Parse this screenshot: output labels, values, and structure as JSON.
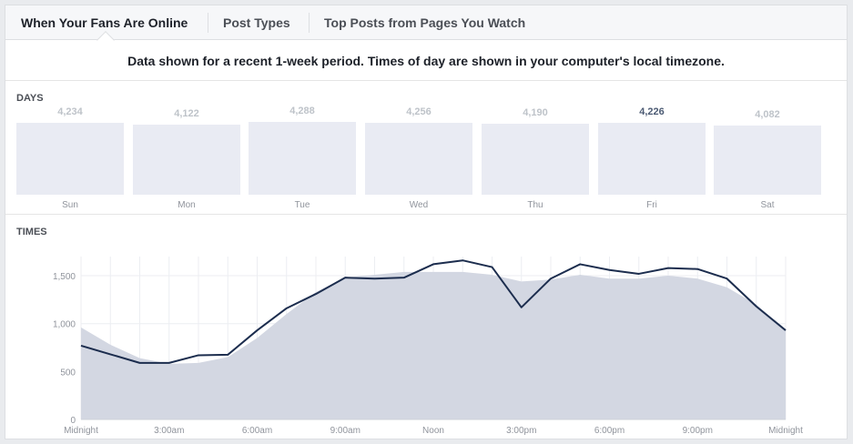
{
  "tabs": [
    {
      "label": "When Your Fans Are Online",
      "active": true
    },
    {
      "label": "Post Types",
      "active": false
    },
    {
      "label": "Top Posts from Pages You Watch",
      "active": false
    }
  ],
  "notice": "Data shown for a recent 1-week period. Times of day are shown in your computer's local timezone.",
  "days_section": {
    "label": "DAYS",
    "days": [
      {
        "name": "Sun",
        "value_label": "4,234",
        "value": 4234,
        "highlighted": false
      },
      {
        "name": "Mon",
        "value_label": "4,122",
        "value": 4122,
        "highlighted": false
      },
      {
        "name": "Tue",
        "value_label": "4,288",
        "value": 4288,
        "highlighted": false
      },
      {
        "name": "Wed",
        "value_label": "4,256",
        "value": 4256,
        "highlighted": false
      },
      {
        "name": "Thu",
        "value_label": "4,190",
        "value": 4190,
        "highlighted": false
      },
      {
        "name": "Fri",
        "value_label": "4,226",
        "value": 4226,
        "highlighted": true
      },
      {
        "name": "Sat",
        "value_label": "4,082",
        "value": 4082,
        "highlighted": false
      }
    ]
  },
  "times_section": {
    "label": "TIMES"
  },
  "colors": {
    "accent_line": "#1c2d4e",
    "area_fill": "#d3d7e2",
    "bar_fill": "#e9ebf3",
    "highlight_text": "#4b5a73"
  },
  "chart_data": {
    "type": "area",
    "x": [
      0,
      1,
      2,
      3,
      4,
      5,
      6,
      7,
      8,
      9,
      10,
      11,
      12,
      13,
      14,
      15,
      16,
      17,
      18,
      19,
      20,
      21,
      22,
      23,
      24
    ],
    "xtick_positions": [
      0,
      3,
      6,
      9,
      12,
      15,
      18,
      21,
      24
    ],
    "xtick_labels": [
      "Midnight",
      "3:00am",
      "6:00am",
      "9:00am",
      "Noon",
      "3:00pm",
      "6:00pm",
      "9:00pm",
      "Midnight"
    ],
    "ytick_values": [
      0,
      500,
      1000,
      1500
    ],
    "ytick_labels": [
      "0",
      "500",
      "1,000",
      "1,500"
    ],
    "ylim": [
      0,
      1700
    ],
    "series": [
      {
        "style": "area",
        "values": [
          960,
          780,
          640,
          580,
          590,
          650,
          850,
          1100,
          1330,
          1480,
          1510,
          1540,
          1540,
          1540,
          1510,
          1440,
          1460,
          1510,
          1470,
          1470,
          1500,
          1470,
          1380,
          1200,
          930
        ]
      },
      {
        "style": "line",
        "values": [
          770,
          680,
          590,
          590,
          670,
          675,
          930,
          1160,
          1310,
          1480,
          1470,
          1480,
          1620,
          1660,
          1590,
          1170,
          1470,
          1620,
          1560,
          1520,
          1580,
          1570,
          1470,
          1180,
          930
        ]
      }
    ]
  }
}
